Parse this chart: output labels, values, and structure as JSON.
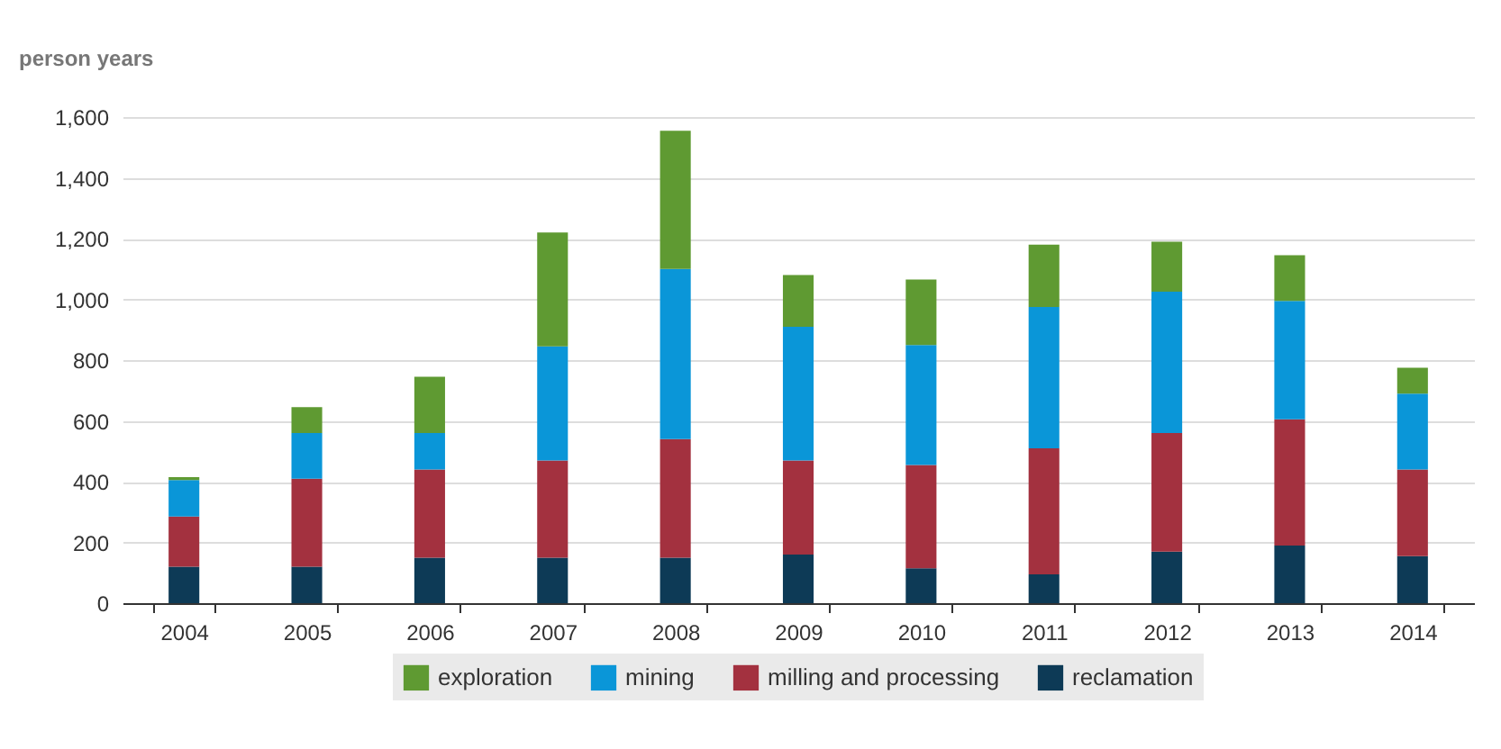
{
  "chart_data": {
    "type": "bar",
    "stacked": true,
    "ylabel": "person years",
    "categories": [
      "2004",
      "2005",
      "2006",
      "2007",
      "2008",
      "2009",
      "2010",
      "2011",
      "2012",
      "2013",
      "2014"
    ],
    "series": [
      {
        "name": "reclamation",
        "color": "#0d3a56",
        "values": [
          120,
          120,
          150,
          150,
          150,
          160,
          115,
          95,
          170,
          190,
          155
        ]
      },
      {
        "name": "milling and processing",
        "color": "#a3313f",
        "values": [
          165,
          290,
          290,
          320,
          390,
          310,
          340,
          415,
          390,
          415,
          285
        ]
      },
      {
        "name": "mining",
        "color": "#0a96d8",
        "values": [
          120,
          150,
          120,
          375,
          560,
          440,
          395,
          465,
          465,
          390,
          250
        ]
      },
      {
        "name": "exploration",
        "color": "#5f9a32",
        "values": [
          10,
          85,
          185,
          375,
          455,
          170,
          215,
          205,
          165,
          150,
          85
        ]
      }
    ],
    "ylim": [
      0,
      1600
    ],
    "yticks": [
      {
        "value": 0,
        "label": "0"
      },
      {
        "value": 200,
        "label": "200"
      },
      {
        "value": 400,
        "label": "400"
      },
      {
        "value": 600,
        "label": "600"
      },
      {
        "value": 800,
        "label": "800"
      },
      {
        "value": 1000,
        "label": "1,000"
      },
      {
        "value": 1200,
        "label": "1,200"
      },
      {
        "value": 1400,
        "label": "1,400"
      },
      {
        "value": 1600,
        "label": "1,600"
      }
    ],
    "grid": "y",
    "legend": "bottom"
  }
}
